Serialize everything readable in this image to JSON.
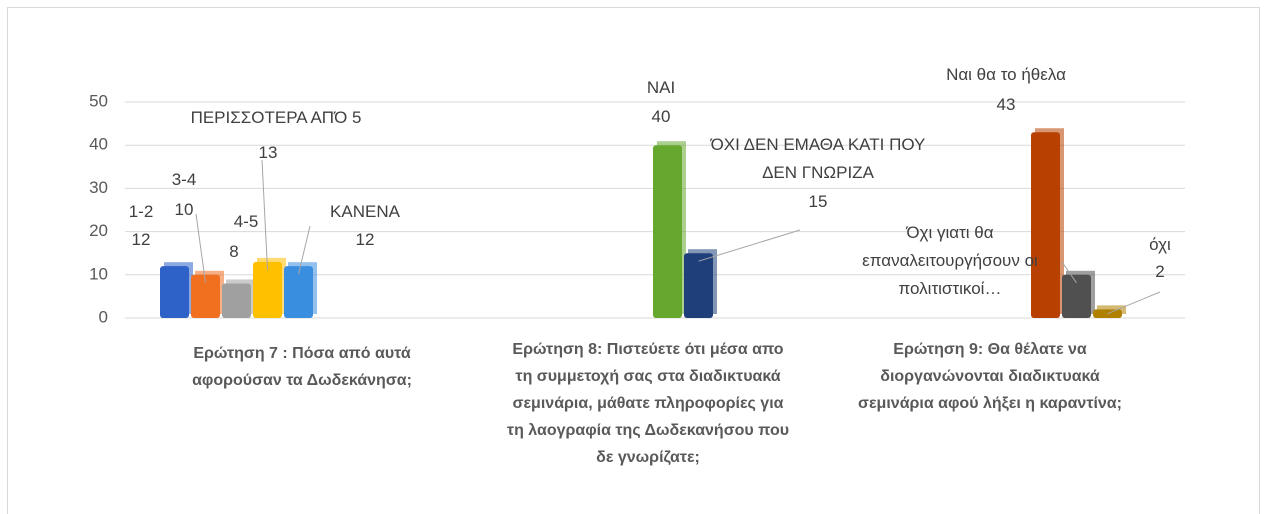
{
  "chart_data": {
    "type": "bar",
    "categories": [
      "Ερώτηση 7 : Πόσα από αυτά αφορούσαν τα Δωδεκάνησα;",
      "Ερώτηση 8: Πιστεύετε ότι μέσα απο τη συμμετοχή σας στα διαδικτυακά σεμινάρια, μάθατε πληροφορίες για τη λαογραφία της Δωδεκανήσου που δε γνωρίζατε;",
      "Ερώτηση 9: Θα θέλατε να διοργανώνονται διαδικτυακά σεμινάρια αφού λήξει η καραντίνα;"
    ],
    "series": [
      {
        "name": "1-2",
        "color": "#2f62c8",
        "values": [
          12,
          null,
          null
        ]
      },
      {
        "name": "3-4",
        "color": "#f07020",
        "values": [
          10,
          null,
          null
        ]
      },
      {
        "name": "4-5",
        "color": "#a0a0a0",
        "values": [
          8,
          null,
          null
        ]
      },
      {
        "name": "ΠΕΡΙΣΣΟΤΕΡΑ ΑΠΌ 5",
        "color": "#ffc000",
        "values": [
          13,
          null,
          null
        ]
      },
      {
        "name": "ΚΑΝΕΝΑ",
        "color": "#3a8ee0",
        "values": [
          12,
          null,
          null
        ]
      },
      {
        "name": "ΝΑΙ",
        "color": "#66a82e",
        "values": [
          null,
          40,
          null
        ]
      },
      {
        "name": "ΌΧΙ ΔΕΝ ΕΜΑΘΑ ΚΑΤΙ ΠΟΥ ΔΕΝ ΓΝΩΡΙΖΑ",
        "color": "#1f3f7a",
        "values": [
          null,
          15,
          null
        ]
      },
      {
        "name": "Ναι θα το ήθελα",
        "color": "#b84000",
        "values": [
          null,
          null,
          43
        ]
      },
      {
        "name": "Όχι γιατι θα επαναλειτουργήσουν οι πολιτιστικοί…",
        "color": "#505050",
        "values": [
          null,
          null,
          10
        ]
      },
      {
        "name": "όχι",
        "color": "#b08000",
        "values": [
          null,
          null,
          2
        ]
      }
    ],
    "value_shown": [
      true,
      true,
      true,
      true,
      true,
      true,
      true,
      true,
      false,
      true
    ],
    "ylim": [
      0,
      50
    ],
    "yticks": [
      0,
      10,
      20,
      30,
      40,
      50
    ],
    "grid": true
  }
}
